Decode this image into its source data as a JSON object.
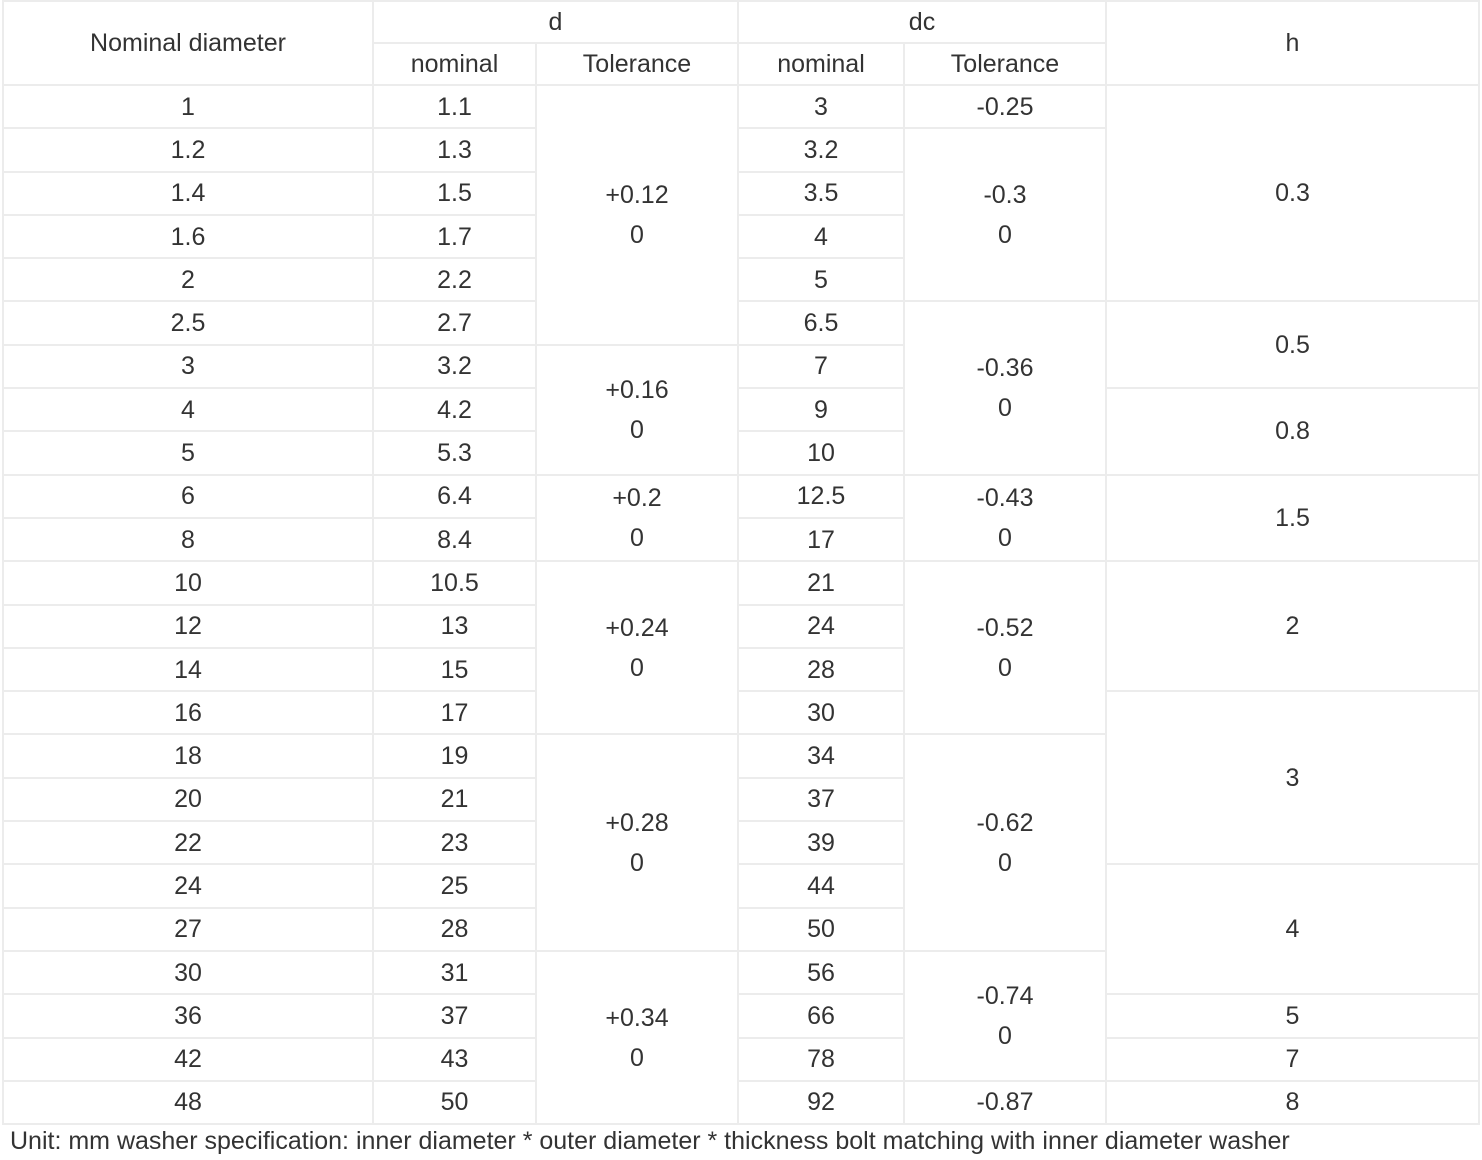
{
  "table": {
    "headers": {
      "nominal_diameter": "Nominal diameter",
      "d": "d",
      "dc": "dc",
      "h": "h",
      "d_nominal": "nominal",
      "d_tolerance": "Tolerance",
      "dc_nominal": "nominal",
      "dc_tolerance": "Tolerance"
    },
    "rows": [
      [
        "1",
        "1.1",
        "3"
      ],
      [
        "1.2",
        "1.3",
        "3.2"
      ],
      [
        "1.4",
        "1.5",
        "3.5"
      ],
      [
        "1.6",
        "1.7",
        "4"
      ],
      [
        "2",
        "2.2",
        "5"
      ],
      [
        "2.5",
        "2.7",
        "6.5"
      ],
      [
        "3",
        "3.2",
        "7"
      ],
      [
        "4",
        "4.2",
        "9"
      ],
      [
        "5",
        "5.3",
        "10"
      ],
      [
        "6",
        "6.4",
        "12.5"
      ],
      [
        "8",
        "8.4",
        "17"
      ],
      [
        "10",
        "10.5",
        "21"
      ],
      [
        "12",
        "13",
        "24"
      ],
      [
        "14",
        "15",
        "28"
      ],
      [
        "16",
        "17",
        "30"
      ],
      [
        "18",
        "19",
        "34"
      ],
      [
        "20",
        "21",
        "37"
      ],
      [
        "22",
        "23",
        "39"
      ],
      [
        "24",
        "25",
        "44"
      ],
      [
        "27",
        "28",
        "50"
      ],
      [
        "30",
        "31",
        "56"
      ],
      [
        "36",
        "37",
        "66"
      ],
      [
        "42",
        "43",
        "78"
      ],
      [
        "48",
        "50",
        "92"
      ]
    ],
    "d_tolerance": [
      [
        "+0.12",
        "0"
      ],
      [
        "+0.16",
        "0"
      ],
      [
        "+0.2",
        "0"
      ],
      [
        "+0.24",
        "0"
      ],
      [
        "+0.28",
        "0"
      ],
      [
        "+0.34",
        "0"
      ]
    ],
    "dc_tolerance": [
      [
        "-0.25"
      ],
      [
        "-0.3",
        "0"
      ],
      [
        "-0.36",
        "0"
      ],
      [
        "-0.43",
        "0"
      ],
      [
        "-0.52",
        "0"
      ],
      [
        "-0.62",
        "0"
      ],
      [
        "-0.74",
        "0"
      ],
      [
        "-0.87"
      ]
    ],
    "h": [
      "0.3",
      "0.5",
      "0.8",
      "1.5",
      "2",
      "3",
      "4",
      "5",
      "7",
      "8"
    ]
  },
  "footer": "Unit: mm washer specification: inner diameter * outer diameter * thickness bolt matching with inner diameter washer"
}
